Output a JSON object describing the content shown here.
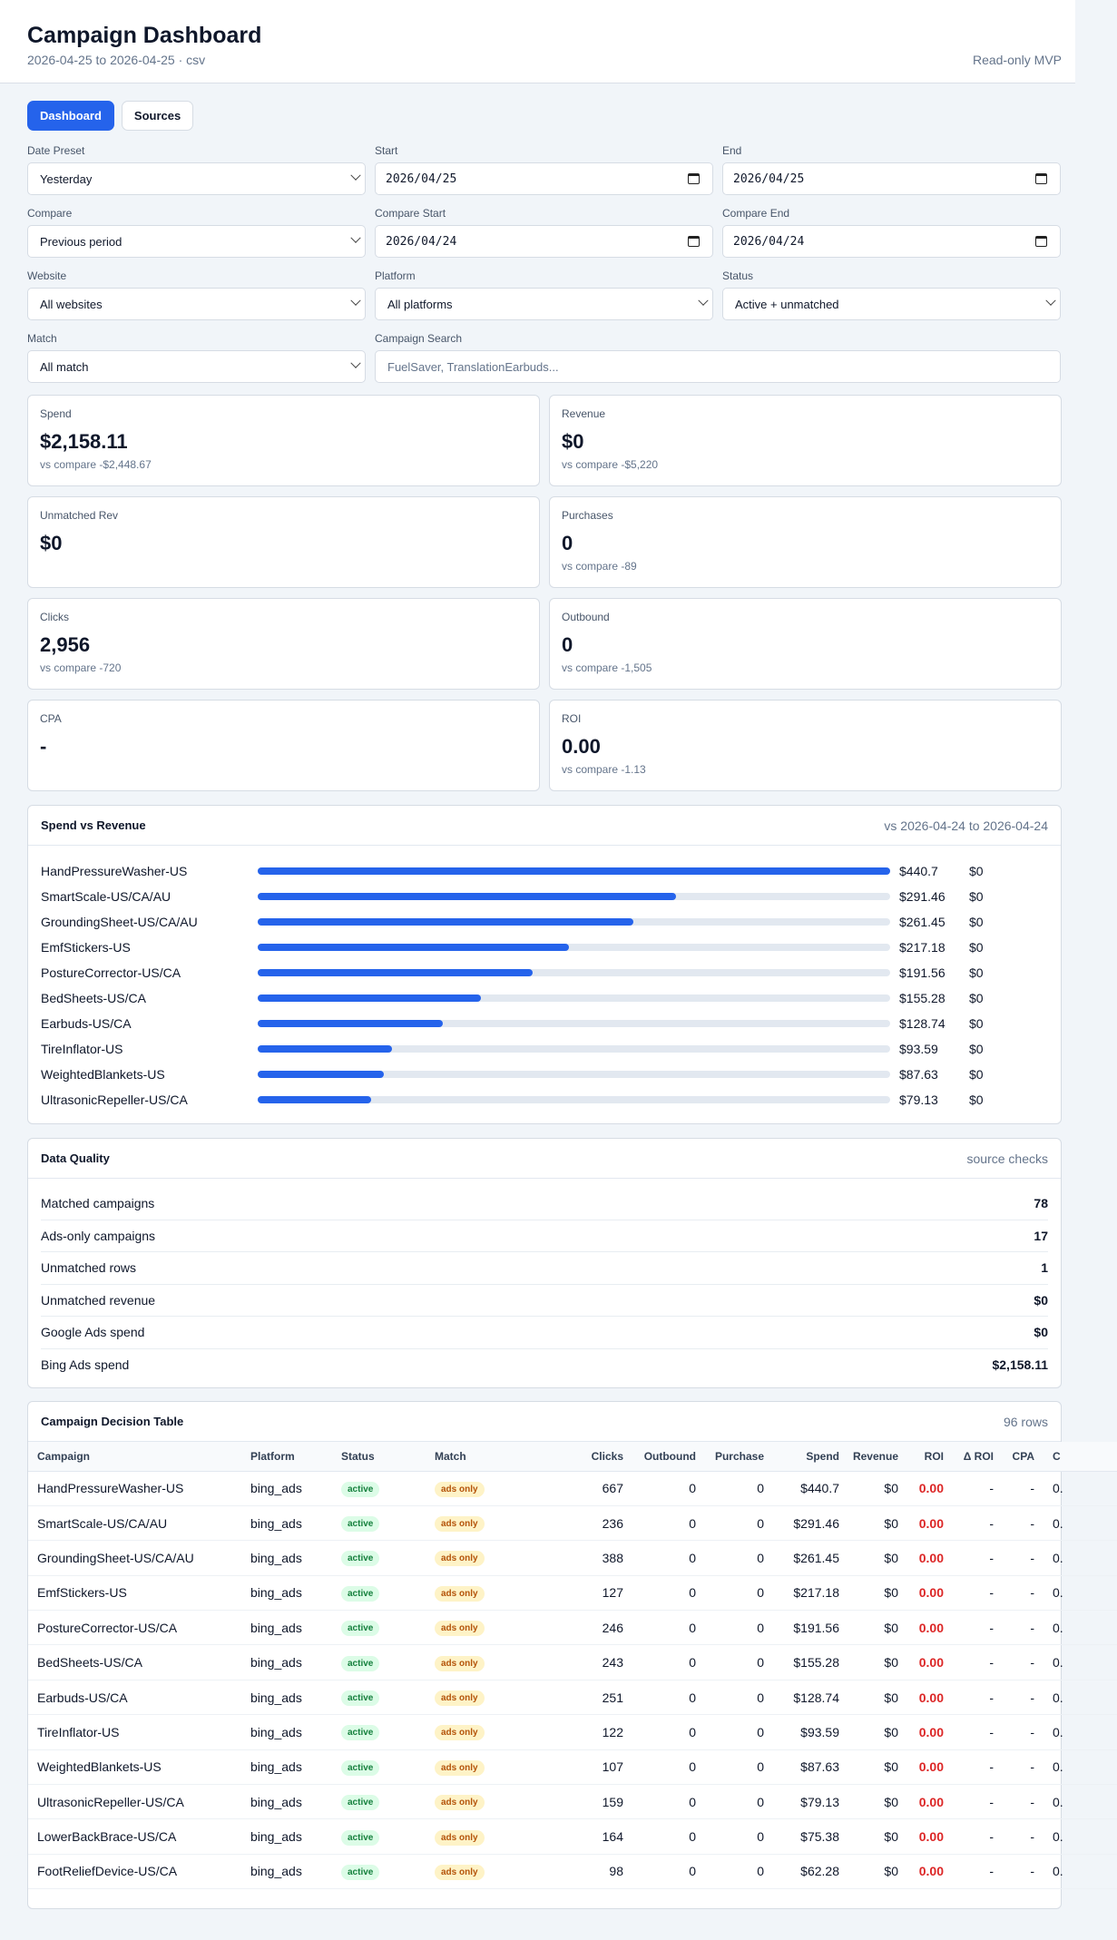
{
  "header": {
    "title": "Campaign Dashboard",
    "subtitle": "2026-04-25 to 2026-04-25 · csv",
    "mode": "Read-only MVP"
  },
  "tabs": [
    {
      "label": "Dashboard",
      "active": true
    },
    {
      "label": "Sources",
      "active": false
    }
  ],
  "filters": {
    "date_preset": {
      "label": "Date Preset",
      "value": "Yesterday"
    },
    "start": {
      "label": "Start",
      "value": "2026/04/25"
    },
    "end": {
      "label": "End",
      "value": "2026/04/25"
    },
    "compare": {
      "label": "Compare",
      "value": "Previous period"
    },
    "compare_start": {
      "label": "Compare Start",
      "value": "2026/04/24"
    },
    "compare_end": {
      "label": "Compare End",
      "value": "2026/04/24"
    },
    "website": {
      "label": "Website",
      "value": "All websites"
    },
    "platform": {
      "label": "Platform",
      "value": "All platforms"
    },
    "status": {
      "label": "Status",
      "value": "Active + unmatched"
    },
    "match": {
      "label": "Match",
      "value": "All match"
    },
    "search": {
      "label": "Campaign Search",
      "placeholder": "FuelSaver, TranslationEarbuds..."
    }
  },
  "kpis": {
    "spend": {
      "label": "Spend",
      "value": "$2,158.11",
      "sub": "vs compare -$2,448.67"
    },
    "revenue": {
      "label": "Revenue",
      "value": "$0",
      "sub": "vs compare -$5,220"
    },
    "unmatched_rev": {
      "label": "Unmatched Rev",
      "value": "$0",
      "sub": ""
    },
    "purchases": {
      "label": "Purchases",
      "value": "0",
      "sub": "vs compare -89"
    },
    "clicks": {
      "label": "Clicks",
      "value": "2,956",
      "sub": "vs compare -720"
    },
    "outbound": {
      "label": "Outbound",
      "value": "0",
      "sub": "vs compare -1,505"
    },
    "cpa": {
      "label": "CPA",
      "value": "-",
      "sub": ""
    },
    "roi": {
      "label": "ROI",
      "value": "0.00",
      "sub": "vs compare -1.13"
    }
  },
  "spend_vs_revenue": {
    "title": "Spend vs Revenue",
    "meta": "vs 2026-04-24 to 2026-04-24",
    "rows": [
      {
        "name": "HandPressureWasher-US",
        "spend": "$440.7",
        "revenue": "$0",
        "share": 1.0
      },
      {
        "name": "SmartScale-US/CA/AU",
        "spend": "$291.46",
        "revenue": "$0",
        "share": 0.6614
      },
      {
        "name": "GroundingSheet-US/CA/AU",
        "spend": "$261.45",
        "revenue": "$0",
        "share": 0.5933
      },
      {
        "name": "EmfStickers-US",
        "spend": "$217.18",
        "revenue": "$0",
        "share": 0.4928
      },
      {
        "name": "PostureCorrector-US/CA",
        "spend": "$191.56",
        "revenue": "$0",
        "share": 0.4347
      },
      {
        "name": "BedSheets-US/CA",
        "spend": "$155.28",
        "revenue": "$0",
        "share": 0.3523
      },
      {
        "name": "Earbuds-US/CA",
        "spend": "$128.74",
        "revenue": "$0",
        "share": 0.2921
      },
      {
        "name": "TireInflator-US",
        "spend": "$93.59",
        "revenue": "$0",
        "share": 0.2124
      },
      {
        "name": "WeightedBlankets-US",
        "spend": "$87.63",
        "revenue": "$0",
        "share": 0.1988
      },
      {
        "name": "UltrasonicRepeller-US/CA",
        "spend": "$79.13",
        "revenue": "$0",
        "share": 0.1796
      }
    ]
  },
  "data_quality": {
    "title": "Data Quality",
    "meta": "source checks",
    "rows": [
      {
        "label": "Matched campaigns",
        "value": "78"
      },
      {
        "label": "Ads-only campaigns",
        "value": "17"
      },
      {
        "label": "Unmatched rows",
        "value": "1"
      },
      {
        "label": "Unmatched revenue",
        "value": "$0"
      },
      {
        "label": "Google Ads spend",
        "value": "$0"
      },
      {
        "label": "Bing Ads spend",
        "value": "$2,158.11"
      }
    ]
  },
  "decision_table": {
    "title": "Campaign Decision Table",
    "meta": "96 rows",
    "columns": [
      "Campaign",
      "Platform",
      "Status",
      "Match",
      "Clicks",
      "Outbound",
      "Purchase",
      "Spend",
      "Revenue",
      "ROI",
      "Δ ROI",
      "CPA",
      "C"
    ],
    "rows": [
      {
        "campaign": "HandPressureWasher-US",
        "platform": "bing_ads",
        "status": "active",
        "match": "ads only",
        "clicks": "667",
        "outbound": "0",
        "purchase": "0",
        "spend": "$440.7",
        "revenue": "$0",
        "roi": "0.00",
        "droi": "-",
        "cpa": "-",
        "c": "0."
      },
      {
        "campaign": "SmartScale-US/CA/AU",
        "platform": "bing_ads",
        "status": "active",
        "match": "ads only",
        "clicks": "236",
        "outbound": "0",
        "purchase": "0",
        "spend": "$291.46",
        "revenue": "$0",
        "roi": "0.00",
        "droi": "-",
        "cpa": "-",
        "c": "0."
      },
      {
        "campaign": "GroundingSheet-US/CA/AU",
        "platform": "bing_ads",
        "status": "active",
        "match": "ads only",
        "clicks": "388",
        "outbound": "0",
        "purchase": "0",
        "spend": "$261.45",
        "revenue": "$0",
        "roi": "0.00",
        "droi": "-",
        "cpa": "-",
        "c": "0."
      },
      {
        "campaign": "EmfStickers-US",
        "platform": "bing_ads",
        "status": "active",
        "match": "ads only",
        "clicks": "127",
        "outbound": "0",
        "purchase": "0",
        "spend": "$217.18",
        "revenue": "$0",
        "roi": "0.00",
        "droi": "-",
        "cpa": "-",
        "c": "0."
      },
      {
        "campaign": "PostureCorrector-US/CA",
        "platform": "bing_ads",
        "status": "active",
        "match": "ads only",
        "clicks": "246",
        "outbound": "0",
        "purchase": "0",
        "spend": "$191.56",
        "revenue": "$0",
        "roi": "0.00",
        "droi": "-",
        "cpa": "-",
        "c": "0."
      },
      {
        "campaign": "BedSheets-US/CA",
        "platform": "bing_ads",
        "status": "active",
        "match": "ads only",
        "clicks": "243",
        "outbound": "0",
        "purchase": "0",
        "spend": "$155.28",
        "revenue": "$0",
        "roi": "0.00",
        "droi": "-",
        "cpa": "-",
        "c": "0."
      },
      {
        "campaign": "Earbuds-US/CA",
        "platform": "bing_ads",
        "status": "active",
        "match": "ads only",
        "clicks": "251",
        "outbound": "0",
        "purchase": "0",
        "spend": "$128.74",
        "revenue": "$0",
        "roi": "0.00",
        "droi": "-",
        "cpa": "-",
        "c": "0."
      },
      {
        "campaign": "TireInflator-US",
        "platform": "bing_ads",
        "status": "active",
        "match": "ads only",
        "clicks": "122",
        "outbound": "0",
        "purchase": "0",
        "spend": "$93.59",
        "revenue": "$0",
        "roi": "0.00",
        "droi": "-",
        "cpa": "-",
        "c": "0."
      },
      {
        "campaign": "WeightedBlankets-US",
        "platform": "bing_ads",
        "status": "active",
        "match": "ads only",
        "clicks": "107",
        "outbound": "0",
        "purchase": "0",
        "spend": "$87.63",
        "revenue": "$0",
        "roi": "0.00",
        "droi": "-",
        "cpa": "-",
        "c": "0."
      },
      {
        "campaign": "UltrasonicRepeller-US/CA",
        "platform": "bing_ads",
        "status": "active",
        "match": "ads only",
        "clicks": "159",
        "outbound": "0",
        "purchase": "0",
        "spend": "$79.13",
        "revenue": "$0",
        "roi": "0.00",
        "droi": "-",
        "cpa": "-",
        "c": "0."
      },
      {
        "campaign": "LowerBackBrace-US/CA",
        "platform": "bing_ads",
        "status": "active",
        "match": "ads only",
        "clicks": "164",
        "outbound": "0",
        "purchase": "0",
        "spend": "$75.38",
        "revenue": "$0",
        "roi": "0.00",
        "droi": "-",
        "cpa": "-",
        "c": "0."
      },
      {
        "campaign": "FootReliefDevice-US/CA",
        "platform": "bing_ads",
        "status": "active",
        "match": "ads only",
        "clicks": "98",
        "outbound": "0",
        "purchase": "0",
        "spend": "$62.28",
        "revenue": "$0",
        "roi": "0.00",
        "droi": "-",
        "cpa": "-",
        "c": "0."
      }
    ]
  },
  "colors": {
    "accent": "#2563eb",
    "roi_negative": "#dc2626",
    "status_active_bg": "#dcfce7",
    "match_ads_only_bg": "#fef3c7"
  },
  "icons": {
    "select": "chevron-down-icon",
    "date": "calendar-icon"
  }
}
